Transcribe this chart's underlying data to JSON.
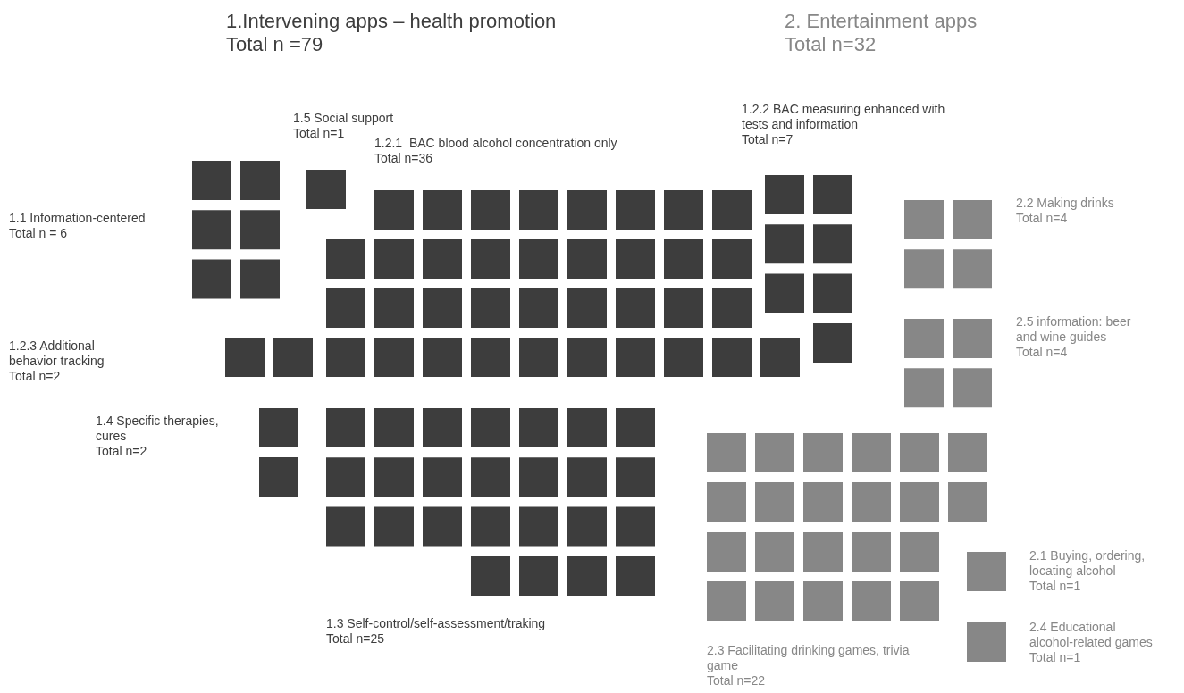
{
  "chart_data": {
    "type": "other",
    "categories": [
      "1.1 Information-centered",
      "1.5 Social support",
      "1.2.1  BAC blood alcohol concentration only",
      "1.2.2 BAC measuring enhanced with tests and information",
      "1.2.3 Additional behavior tracking",
      "1.4 Specific therapies, cures",
      "1.3 Self-control/self-assessment/traking",
      "2.2 Making drinks",
      "2.5 information: beer and wine guides",
      "2.1 Buying, ordering, locating alcohol",
      "2.4 Educational alcohol-related games",
      "2.3 Facilitating drinking games, trivia game"
    ],
    "series": [
      {
        "name": "1.Intervening apps – health promotion",
        "color": "#3d3d3d",
        "values": [
          6,
          1,
          36,
          7,
          2,
          2,
          25,
          null,
          null,
          null,
          null,
          null
        ],
        "value_labels": [
          "Total n = 6",
          "Total n=1",
          "Total n=36",
          "Total n=7",
          "Total n=2",
          "Total n=2",
          "Total n=25",
          null,
          null,
          null,
          null,
          null
        ]
      },
      {
        "name": "2. Entertainment apps",
        "color": "#878787",
        "values": [
          null,
          null,
          null,
          null,
          null,
          null,
          null,
          4,
          4,
          1,
          1,
          22
        ],
        "value_labels": [
          null,
          null,
          null,
          null,
          null,
          null,
          null,
          "Total n=4",
          "Total n=4",
          "Total n=1",
          "Total n=1",
          "Total n=22"
        ]
      }
    ],
    "annotations": [
      "Total n =79",
      "Total n=32"
    ]
  }
}
